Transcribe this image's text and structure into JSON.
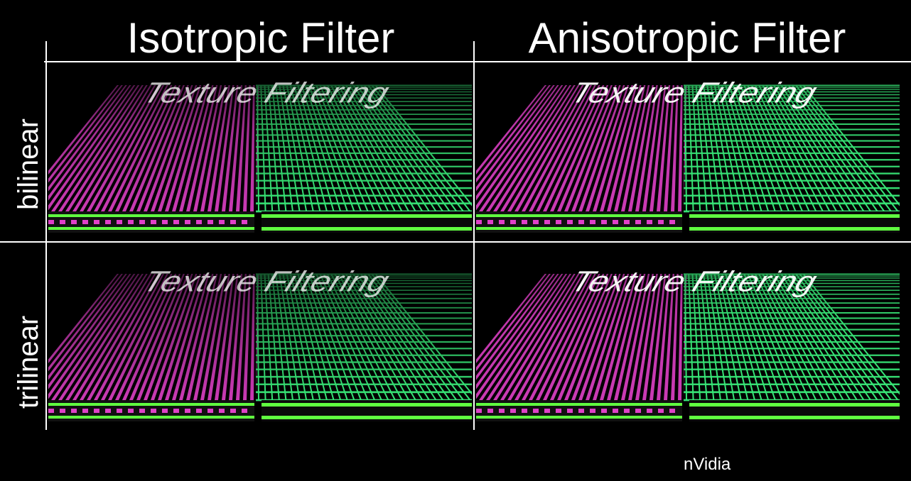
{
  "columns": [
    {
      "title": "Isotropic Filter"
    },
    {
      "title": "Anisotropic Filter"
    }
  ],
  "rows": [
    {
      "label": "bilinear"
    },
    {
      "label": "trilinear"
    }
  ],
  "texture_text": "Texture Filtering",
  "credit": "nVidia",
  "colors": {
    "magenta": "#e040c8",
    "green": "#38e878",
    "bright_green": "#60ff40",
    "white": "#ffffff",
    "background": "#000000"
  }
}
